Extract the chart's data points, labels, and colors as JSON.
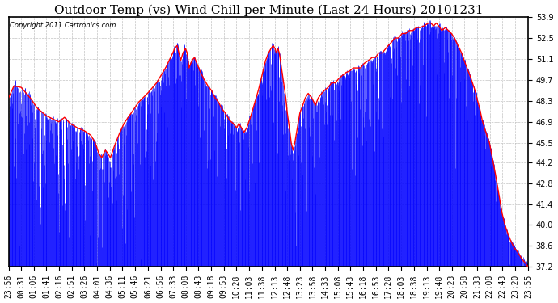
{
  "title": "Outdoor Temp (vs) Wind Chill per Minute (Last 24 Hours) 20101231",
  "copyright": "Copyright 2011 Cartronics.com",
  "ylabel_ticks": [
    37.2,
    38.6,
    40.0,
    41.4,
    42.8,
    44.2,
    45.5,
    46.9,
    48.3,
    49.7,
    51.1,
    52.5,
    53.9
  ],
  "ymin": 37.2,
  "ymax": 53.9,
  "background_color": "#ffffff",
  "plot_background": "#ffffff",
  "grid_color": "#aaaaaa",
  "blue_color": "#0000ff",
  "red_color": "#ff0000",
  "title_fontsize": 11,
  "tick_label_fontsize": 7,
  "x_tick_labels": [
    "23:56",
    "00:31",
    "01:06",
    "01:41",
    "02:16",
    "02:51",
    "03:26",
    "04:01",
    "04:36",
    "05:11",
    "05:46",
    "06:21",
    "06:56",
    "07:33",
    "08:08",
    "08:43",
    "09:18",
    "09:53",
    "10:28",
    "11:03",
    "11:38",
    "12:13",
    "12:48",
    "13:23",
    "13:58",
    "14:33",
    "15:08",
    "15:43",
    "16:18",
    "16:53",
    "17:28",
    "18:03",
    "18:38",
    "19:13",
    "19:48",
    "20:23",
    "20:58",
    "21:33",
    "22:08",
    "22:43",
    "23:20",
    "23:55"
  ]
}
